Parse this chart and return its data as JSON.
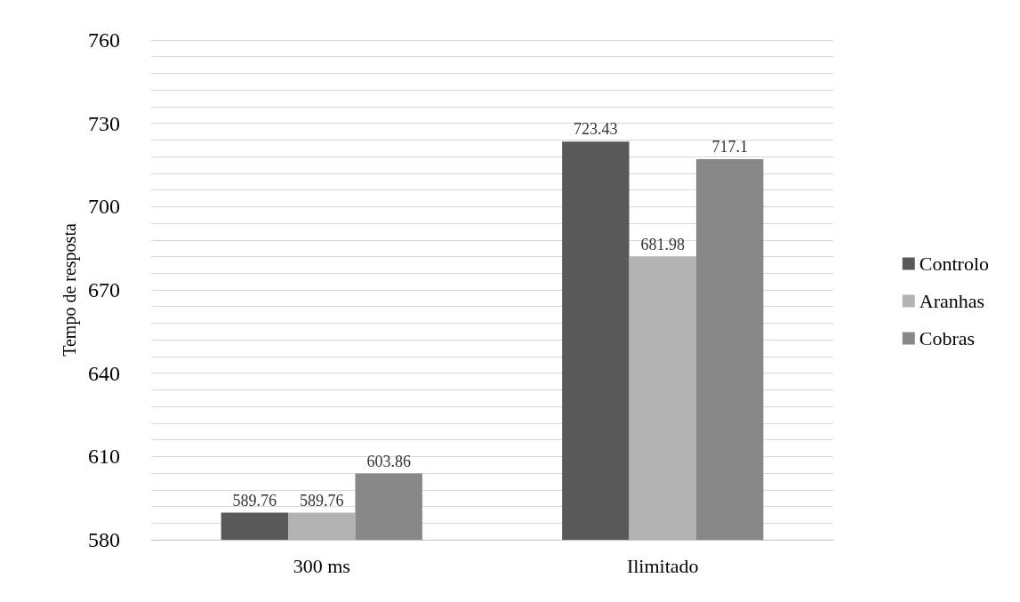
{
  "chart_data": {
    "type": "bar",
    "ylabel": "Tempo de resposta",
    "categories": [
      "300 ms",
      "Ilimitado"
    ],
    "series": [
      {
        "name": "Controlo",
        "color": "#595959",
        "values": [
          589.76,
          723.43
        ]
      },
      {
        "name": "Aranhas",
        "color": "#b3b3b3",
        "values": [
          589.76,
          681.98
        ]
      },
      {
        "name": "Cobras",
        "color": "#878787",
        "values": [
          603.86,
          717.1
        ]
      }
    ],
    "ylim": [
      580,
      760
    ],
    "yticks": [
      580,
      {
        "value": 586,
        "label": null
      },
      {
        "value": 592,
        "label": null
      },
      {
        "value": 598,
        "label": null
      },
      {
        "value": 604,
        "label": null
      },
      610,
      {
        "value": 616,
        "label": null
      },
      {
        "value": 622,
        "label": null
      },
      {
        "value": 628,
        "label": null
      },
      {
        "value": 634,
        "label": null
      },
      640,
      {
        "value": 646,
        "label": null
      },
      {
        "value": 652,
        "label": null
      },
      {
        "value": 658,
        "label": null
      },
      {
        "value": 664,
        "label": null
      },
      670,
      {
        "value": 676,
        "label": null
      },
      {
        "value": 682,
        "label": null
      },
      {
        "value": 688,
        "label": null
      },
      {
        "value": 694,
        "label": null
      },
      700,
      {
        "value": 706,
        "label": null
      },
      {
        "value": 712,
        "label": null
      },
      {
        "value": 718,
        "label": null
      },
      {
        "value": 724,
        "label": null
      },
      730,
      {
        "value": 736,
        "label": null
      },
      {
        "value": 742,
        "label": null
      },
      {
        "value": 748,
        "label": null
      },
      {
        "value": 754,
        "label": null
      },
      760
    ],
    "grid": true,
    "legend": "right",
    "data_labels": true
  }
}
